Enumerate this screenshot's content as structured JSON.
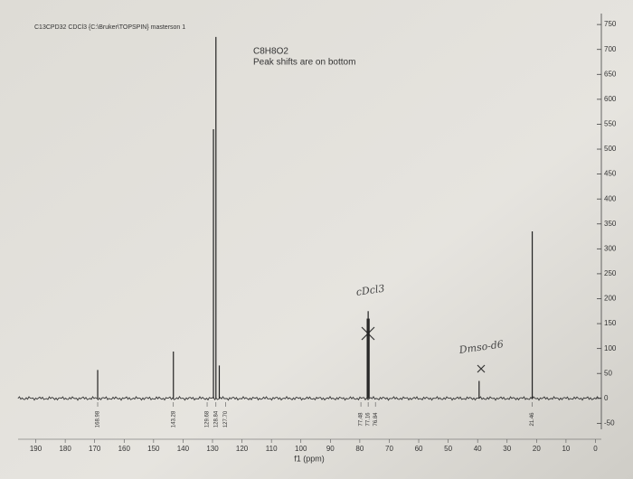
{
  "chart_data": {
    "type": "spectrum",
    "header": "C13CPD32 CDCl3 {C:\\Bruker\\TOPSPIN} masterson 1",
    "title": "C8H8O2",
    "subtitle": "Peak shifts are on bottom",
    "xlabel": "f1 (ppm)",
    "annotations": [
      "cDcl3",
      "Dmso-d6"
    ],
    "x": [
      168.98,
      143.28,
      129.68,
      128.84,
      127.7,
      77.48,
      77.16,
      76.84,
      39.5,
      21.46
    ],
    "values": [
      57,
      94,
      540,
      725,
      66,
      160,
      175,
      160,
      35,
      335
    ],
    "x_labels": [
      "168.98",
      "143.28",
      "129.68",
      "128.84",
      "127.70",
      "77.48",
      "77.16",
      "76.84",
      null,
      "21.46"
    ],
    "color": "#222222",
    "xlim": [
      196,
      -2
    ],
    "ylim": [
      -62,
      772
    ],
    "xticks": [
      190,
      180,
      170,
      160,
      150,
      140,
      130,
      120,
      110,
      100,
      90,
      80,
      70,
      60,
      50,
      40,
      30,
      20,
      10,
      0
    ],
    "yticks": [
      -50,
      0,
      50,
      100,
      150,
      200,
      250,
      300,
      350,
      400,
      450,
      500,
      550,
      600,
      650,
      700,
      750
    ]
  }
}
